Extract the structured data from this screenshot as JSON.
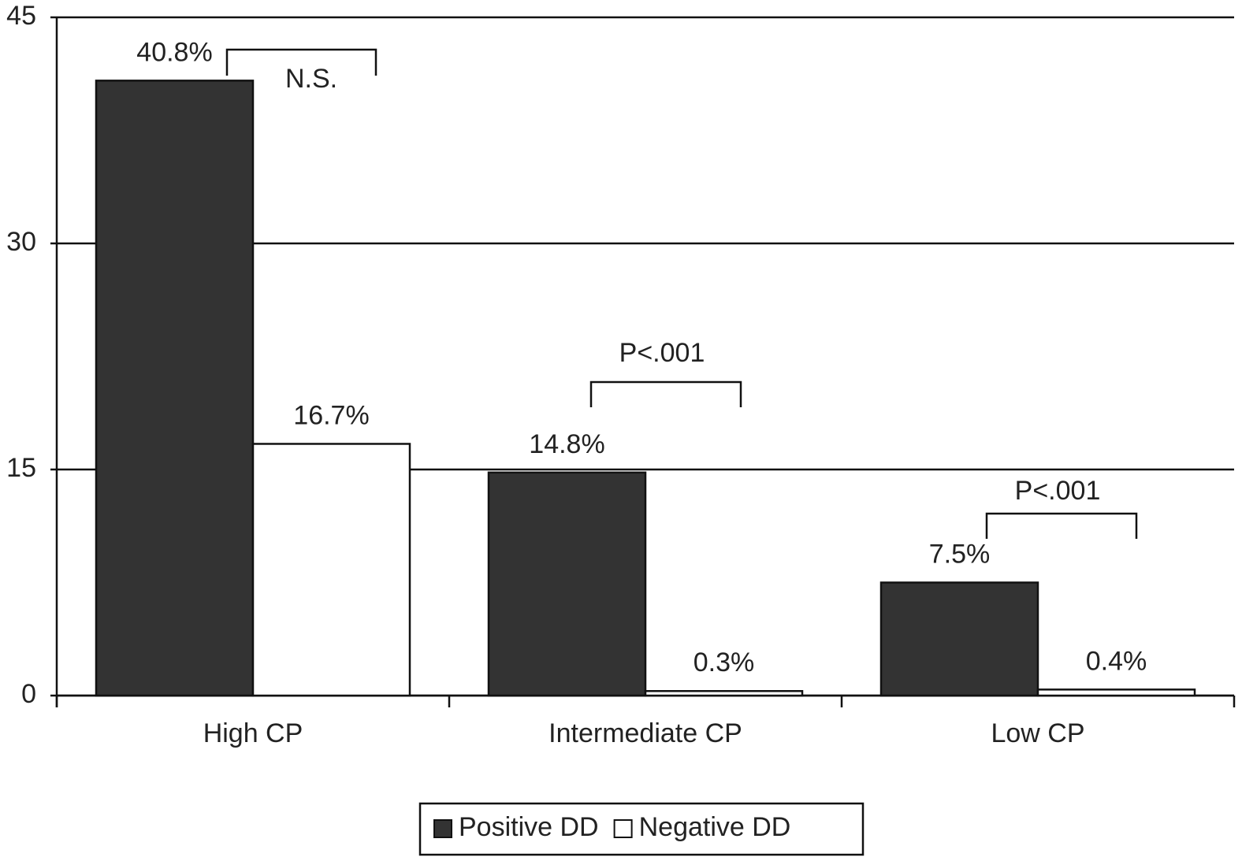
{
  "chart_data": {
    "type": "bar",
    "categories": [
      "High CP",
      "Intermediate CP",
      "Low CP"
    ],
    "series": [
      {
        "name": "Positive DD",
        "color": "#333333",
        "values": [
          40.8,
          14.8,
          7.5
        ],
        "value_labels": [
          "40.8%",
          "14.8%",
          "7.5%"
        ]
      },
      {
        "name": "Negative DD",
        "color": "#ffffff",
        "values": [
          16.7,
          0.3,
          0.4
        ],
        "value_labels": [
          "16.7%",
          "0.3%",
          "0.4%"
        ]
      }
    ],
    "annotations": [
      "N.S.",
      "P<.001",
      "P<.001"
    ],
    "ylim": [
      0,
      45
    ],
    "yticks": [
      0,
      15,
      30,
      45
    ],
    "grid": true,
    "legend": "bottom"
  }
}
